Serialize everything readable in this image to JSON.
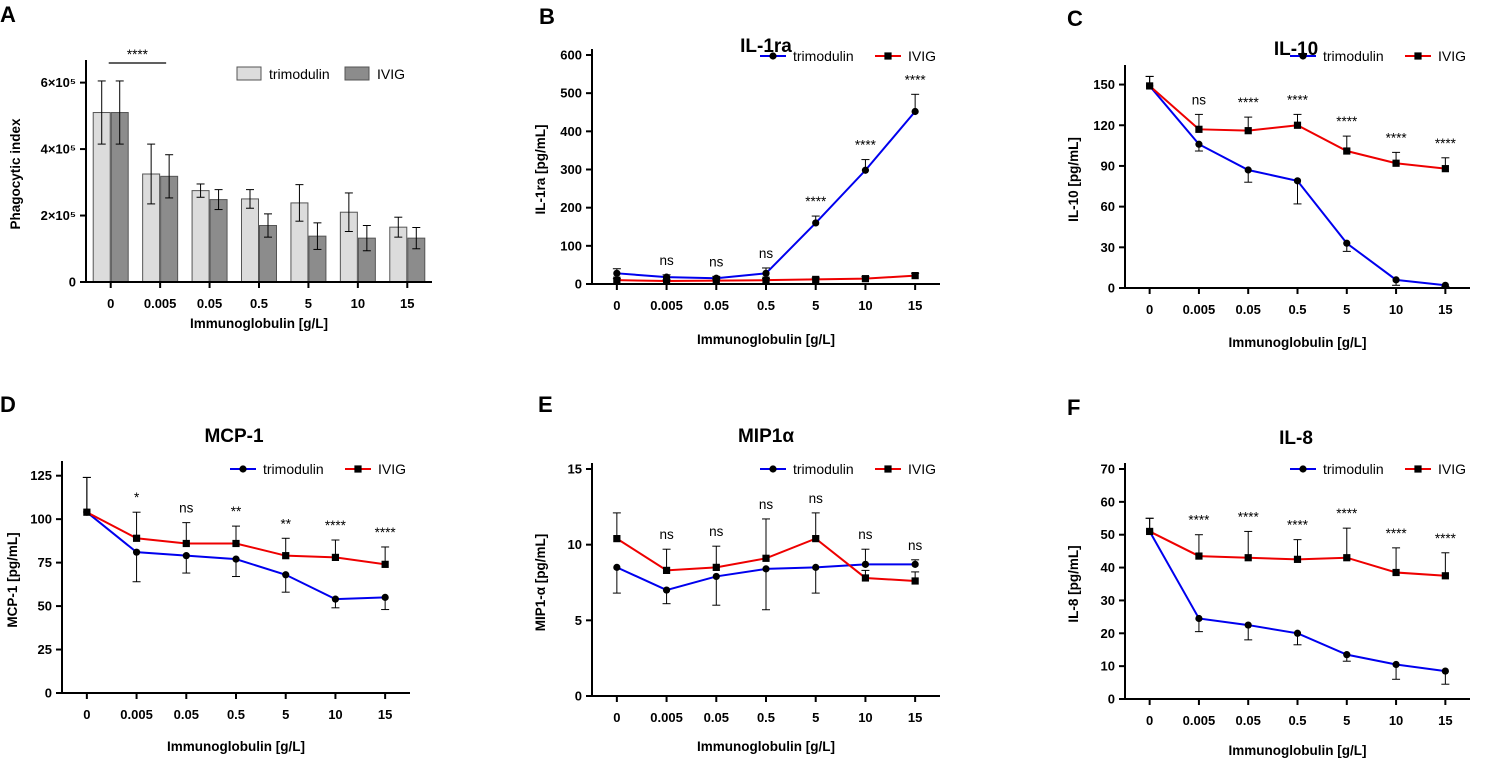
{
  "chart_data": [
    {
      "panel": "A",
      "type": "bar",
      "title": "",
      "xlabel": "Immunoglobulin [g/L]",
      "ylabel": "Phagocytic index",
      "categories": [
        "0",
        "0.005",
        "0.05",
        "0.5",
        "5",
        "10",
        "15"
      ],
      "ylim": [
        0,
        650000
      ],
      "yticks": [
        0,
        200000,
        400000,
        600000
      ],
      "ytick_labels": [
        "0",
        "2×10⁵",
        "4×10⁵",
        "6×10⁵"
      ],
      "legend_position": "top-right",
      "series": [
        {
          "name": "trimodulin",
          "color": "#dcdcdc",
          "values": [
            510000,
            325000,
            275000,
            250000,
            238000,
            210000,
            165000
          ],
          "errors": [
            95000,
            90000,
            20000,
            28000,
            55000,
            58000,
            30000
          ]
        },
        {
          "name": "IVIG",
          "color": "#8c8c8c",
          "values": [
            510000,
            318000,
            248000,
            170000,
            138000,
            132000,
            132000
          ],
          "errors": [
            95000,
            65000,
            30000,
            35000,
            40000,
            38000,
            32000
          ]
        }
      ],
      "annotations": [
        {
          "label": "****",
          "from": 0,
          "to": 1
        }
      ]
    },
    {
      "panel": "B",
      "type": "line",
      "title": "IL-1ra",
      "xlabel": "Immunoglobulin [g/L]",
      "ylabel": "IL-1ra [pg/mL]",
      "categories": [
        "0",
        "0.005",
        "0.05",
        "0.5",
        "5",
        "10",
        "15"
      ],
      "ylim": [
        0,
        600
      ],
      "yticks": [
        0,
        100,
        200,
        300,
        400,
        500,
        600
      ],
      "legend_position": "top-right",
      "series": [
        {
          "name": "trimodulin",
          "color": "#0000ee",
          "marker": "circle",
          "values": [
            28,
            18,
            15,
            28,
            160,
            298,
            452
          ],
          "errors": [
            12,
            6,
            5,
            14,
            18,
            28,
            45
          ]
        },
        {
          "name": "IVIG",
          "color": "#ee0000",
          "marker": "square",
          "values": [
            10,
            8,
            9,
            10,
            12,
            14,
            22
          ],
          "errors": [
            4,
            3,
            3,
            4,
            4,
            5,
            6
          ]
        }
      ],
      "significance": [
        "",
        "ns",
        "ns",
        "ns",
        "****",
        "****",
        "****"
      ]
    },
    {
      "panel": "C",
      "type": "line",
      "title": "IL-10",
      "xlabel": "Immunoglobulin [g/L]",
      "ylabel": "IL-10 [pg/mL]",
      "categories": [
        "0",
        "0.005",
        "0.05",
        "0.5",
        "5",
        "10",
        "15"
      ],
      "ylim": [
        0,
        160
      ],
      "yticks": [
        0,
        30,
        60,
        90,
        120,
        150
      ],
      "legend_position": "top-right",
      "series": [
        {
          "name": "trimodulin",
          "color": "#0000ee",
          "marker": "circle",
          "values": [
            149,
            106,
            87,
            79,
            33,
            6,
            2
          ],
          "errors": [
            7,
            5,
            9,
            17,
            6,
            4,
            1
          ]
        },
        {
          "name": "IVIG",
          "color": "#ee0000",
          "marker": "square",
          "values": [
            149,
            117,
            116,
            120,
            101,
            92,
            88
          ],
          "errors": [
            7,
            11,
            10,
            8,
            11,
            8,
            8
          ]
        }
      ],
      "significance": [
        "",
        "ns",
        "****",
        "****",
        "****",
        "****",
        "****"
      ]
    },
    {
      "panel": "D",
      "type": "line",
      "title": "MCP-1",
      "xlabel": "Immunoglobulin [g/L]",
      "ylabel": "MCP-1 [pg/mL]",
      "categories": [
        "0",
        "0.005",
        "0.05",
        "0.5",
        "5",
        "10",
        "15"
      ],
      "ylim": [
        0,
        130
      ],
      "yticks": [
        0,
        25,
        50,
        75,
        100,
        125
      ],
      "legend_position": "top-right",
      "series": [
        {
          "name": "trimodulin",
          "color": "#0000ee",
          "marker": "circle",
          "values": [
            104,
            81,
            79,
            77,
            68,
            54,
            55
          ],
          "errors": [
            20,
            17,
            10,
            10,
            10,
            5,
            7
          ]
        },
        {
          "name": "IVIG",
          "color": "#ee0000",
          "marker": "square",
          "values": [
            104,
            89,
            86,
            86,
            79,
            78,
            74
          ],
          "errors": [
            20,
            15,
            12,
            10,
            10,
            10,
            10
          ]
        }
      ],
      "significance": [
        "",
        "*",
        "ns",
        "**",
        "**",
        "****",
        "****"
      ]
    },
    {
      "panel": "E",
      "type": "line",
      "title": "MIP1α",
      "xlabel": "Immunoglobulin [g/L]",
      "ylabel": "MIP1-α [pg/mL]",
      "categories": [
        "0",
        "0.005",
        "0.05",
        "0.5",
        "5",
        "10",
        "15"
      ],
      "ylim": [
        0,
        15
      ],
      "yticks": [
        0,
        5,
        10,
        15
      ],
      "legend_position": "top-right",
      "series": [
        {
          "name": "trimodulin",
          "color": "#0000ee",
          "marker": "circle",
          "values": [
            8.5,
            7.0,
            7.9,
            8.4,
            8.5,
            8.7,
            8.7
          ],
          "errors": [
            1.7,
            0.9,
            1.9,
            2.7,
            1.7,
            1.0,
            0.3
          ]
        },
        {
          "name": "IVIG",
          "color": "#ee0000",
          "marker": "square",
          "values": [
            10.4,
            8.3,
            8.5,
            9.1,
            10.4,
            7.8,
            7.6
          ],
          "errors": [
            1.7,
            1.4,
            1.4,
            2.6,
            1.7,
            0.5,
            0.6
          ]
        }
      ],
      "significance": [
        "",
        "ns",
        "ns",
        "ns",
        "ns",
        "ns",
        "ns"
      ]
    },
    {
      "panel": "F",
      "type": "line",
      "title": "IL-8",
      "xlabel": "Immunoglobulin [g/L]",
      "ylabel": "IL-8 [pg/mL]",
      "categories": [
        "0",
        "0.005",
        "0.05",
        "0.5",
        "5",
        "10",
        "15"
      ],
      "ylim": [
        0,
        70
      ],
      "yticks": [
        0,
        10,
        20,
        30,
        40,
        50,
        60,
        70
      ],
      "legend_position": "top-right",
      "series": [
        {
          "name": "trimodulin",
          "color": "#0000ee",
          "marker": "circle",
          "values": [
            51,
            24.5,
            22.5,
            20,
            13.5,
            10.5,
            8.5
          ],
          "errors": [
            4,
            4,
            4.5,
            3.5,
            2,
            4.5,
            4
          ]
        },
        {
          "name": "IVIG",
          "color": "#ee0000",
          "marker": "square",
          "values": [
            51,
            43.5,
            43,
            42.5,
            43,
            38.5,
            37.5
          ],
          "errors": [
            4,
            6.5,
            8,
            6,
            9,
            7.5,
            7
          ]
        }
      ],
      "significance": [
        "",
        "****",
        "****",
        "****",
        "****",
        "****",
        "****"
      ]
    }
  ]
}
